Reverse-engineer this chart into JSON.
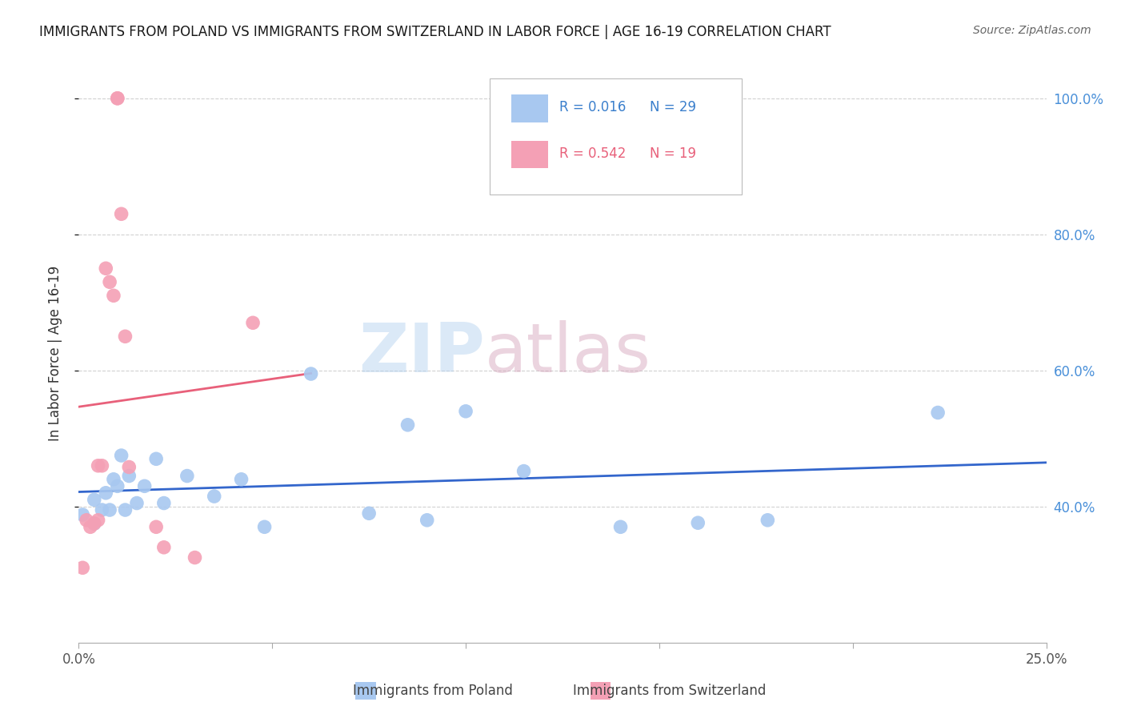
{
  "title": "IMMIGRANTS FROM POLAND VS IMMIGRANTS FROM SWITZERLAND IN LABOR FORCE | AGE 16-19 CORRELATION CHART",
  "source": "Source: ZipAtlas.com",
  "ylabel": "In Labor Force | Age 16-19",
  "xlim": [
    0.0,
    0.25
  ],
  "ylim": [
    0.2,
    1.05
  ],
  "yticks": [
    0.4,
    0.6,
    0.8,
    1.0
  ],
  "ytick_labels": [
    "40.0%",
    "60.0%",
    "80.0%",
    "100.0%"
  ],
  "xticks": [
    0.0,
    0.05,
    0.1,
    0.15,
    0.2,
    0.25
  ],
  "xtick_labels": [
    "0.0%",
    "",
    "",
    "",
    "",
    "25.0%"
  ],
  "poland_R": 0.016,
  "poland_N": 29,
  "switzerland_R": 0.542,
  "switzerland_N": 19,
  "poland_color": "#a8c8f0",
  "switzerland_color": "#f4a0b5",
  "regression_poland_color": "#3366cc",
  "regression_switzerland_color": "#e8607a",
  "watermark_zip": "ZIP",
  "watermark_atlas": "atlas",
  "poland_x": [
    0.001,
    0.004,
    0.004,
    0.006,
    0.007,
    0.008,
    0.009,
    0.01,
    0.011,
    0.012,
    0.013,
    0.015,
    0.017,
    0.02,
    0.022,
    0.028,
    0.035,
    0.042,
    0.048,
    0.06,
    0.075,
    0.085,
    0.09,
    0.1,
    0.115,
    0.14,
    0.16,
    0.178,
    0.222
  ],
  "poland_y": [
    0.388,
    0.41,
    0.375,
    0.395,
    0.42,
    0.395,
    0.44,
    0.43,
    0.475,
    0.395,
    0.445,
    0.405,
    0.43,
    0.47,
    0.405,
    0.445,
    0.415,
    0.44,
    0.37,
    0.595,
    0.39,
    0.52,
    0.38,
    0.54,
    0.452,
    0.37,
    0.376,
    0.38,
    0.538
  ],
  "switzerland_x": [
    0.001,
    0.002,
    0.003,
    0.004,
    0.005,
    0.005,
    0.006,
    0.007,
    0.008,
    0.009,
    0.01,
    0.01,
    0.011,
    0.012,
    0.013,
    0.02,
    0.022,
    0.03,
    0.045
  ],
  "switzerland_y": [
    0.31,
    0.38,
    0.37,
    0.375,
    0.38,
    0.46,
    0.46,
    0.75,
    0.73,
    0.71,
    1.0,
    1.0,
    0.83,
    0.65,
    0.458,
    0.37,
    0.34,
    0.325,
    0.67
  ],
  "legend_box_color": "#ffffff",
  "legend_box_edge": "#aaaaaa"
}
